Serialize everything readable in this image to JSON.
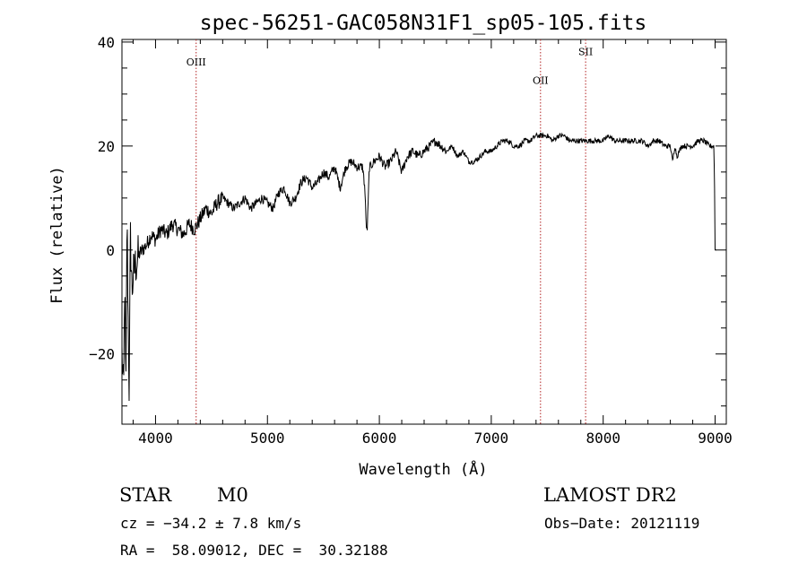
{
  "chart_data": {
    "type": "line",
    "title": "spec-56251-GAC058N31F1_sp05-105.fits",
    "xlabel": "Wavelength (Å)",
    "ylabel": "Flux (relative)",
    "xlim": [
      3700,
      9100
    ],
    "ylim": [
      -33.5,
      40.5
    ],
    "xticks": [
      4000,
      5000,
      6000,
      7000,
      8000,
      9000
    ],
    "yticks": [
      -20,
      0,
      20,
      40
    ],
    "ytick_labels": [
      "−20",
      "0",
      "20",
      "40"
    ],
    "grid": false,
    "series": [
      {
        "x": [
          3700,
          3715,
          3725,
          3735,
          3745,
          3755,
          3765,
          3775,
          3790,
          3800,
          3820,
          3850,
          3880,
          3920,
          3960,
          4000,
          4050,
          4100,
          4150,
          4200,
          4250,
          4300,
          4350,
          4400,
          4450,
          4500,
          4550,
          4600,
          4650,
          4700,
          4750,
          4800,
          4850,
          4900,
          4950,
          5000,
          5050,
          5100,
          5150,
          5200,
          5250,
          5300,
          5350,
          5400,
          5450,
          5500,
          5550,
          5600,
          5650,
          5700,
          5750,
          5800,
          5850,
          5870,
          5880,
          5890,
          5900,
          5910,
          5920,
          5950,
          6000,
          6050,
          6100,
          6150,
          6200,
          6250,
          6300,
          6350,
          6400,
          6450,
          6500,
          6550,
          6600,
          6650,
          6700,
          6750,
          6800,
          6850,
          6900,
          6950,
          7000,
          7050,
          7100,
          7150,
          7200,
          7250,
          7300,
          7350,
          7400,
          7450,
          7500,
          7550,
          7600,
          7650,
          7700,
          7750,
          7800,
          7850,
          7900,
          7950,
          8000,
          8050,
          8100,
          8150,
          8200,
          8250,
          8300,
          8350,
          8400,
          8450,
          8500,
          8550,
          8600,
          8620,
          8640,
          8660,
          8700,
          8750,
          8800,
          8850,
          8900,
          8950,
          8990,
          8995,
          9000,
          9010
        ],
        "y": [
          -20,
          -28,
          -5,
          -30,
          7,
          -12,
          -28,
          3,
          -8,
          -5,
          -3,
          -1,
          0,
          1,
          3,
          2,
          4,
          3,
          5,
          4,
          3,
          5,
          4,
          6,
          8,
          7,
          9,
          10,
          9,
          8,
          9,
          10,
          8,
          9,
          10,
          9,
          8,
          11,
          12,
          9,
          10,
          13,
          14,
          12,
          13,
          15,
          14,
          16,
          12,
          16,
          17,
          16,
          16,
          12,
          6,
          3,
          9,
          16,
          16,
          17,
          18,
          16,
          17,
          19,
          15,
          18,
          19,
          18,
          19,
          20,
          21,
          20,
          19,
          20,
          18,
          19,
          17,
          17,
          18,
          19,
          19,
          20,
          21,
          21,
          20,
          20,
          21,
          21,
          22,
          22,
          22,
          21,
          22,
          22,
          21,
          21,
          21,
          21,
          21,
          21,
          21,
          22,
          21,
          21,
          21,
          21,
          21,
          21,
          20,
          21,
          21,
          20,
          20,
          17,
          20,
          18,
          20,
          20,
          20,
          21,
          21,
          20,
          20,
          12,
          0,
          0
        ]
      }
    ],
    "annotations": [
      {
        "label": "OIII",
        "x": 4363,
        "y": 35.5
      },
      {
        "label": "OII",
        "x": 7440,
        "y": 32
      },
      {
        "label": "SII",
        "x": 7843,
        "y": 37.5
      }
    ]
  },
  "info": {
    "object_class": "STAR",
    "subclass": "M0",
    "survey": "LAMOST DR2",
    "velocity": "cz = −34.2 ± 7.8 km/s",
    "obs_date": "Obs−Date: 20121119",
    "coords": "RA =  58.09012, DEC =  30.32188"
  }
}
